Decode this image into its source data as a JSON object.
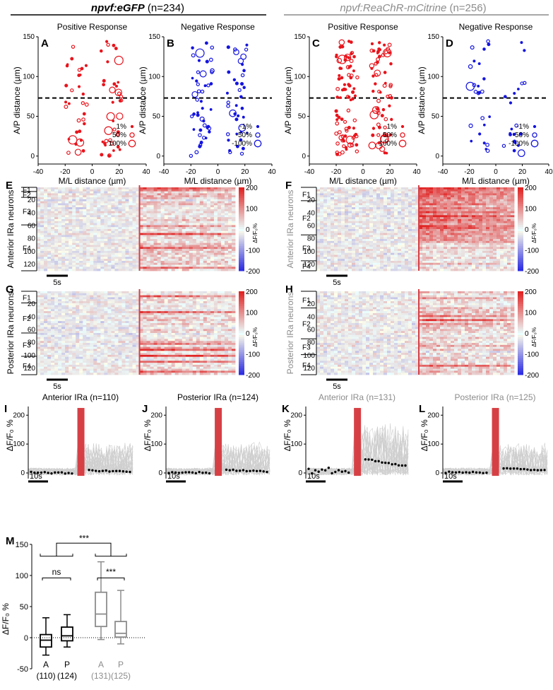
{
  "headers": {
    "left": {
      "title": "npvf:eGFP",
      "count": "(n=234)"
    },
    "right": {
      "title": "npvf:ReaChR-mCitrine",
      "count": "(n=256)"
    }
  },
  "colors": {
    "red": "#e8141c",
    "blue": "#1414e0",
    "gray": "#8c8c8c",
    "black": "#000000",
    "stim": "#d64045",
    "traceGray": "#cfcfcf"
  },
  "scatter_panels": [
    {
      "letter": "A",
      "title": "Positive Response",
      "color": "red",
      "legend": [
        "1%",
        "50%",
        "100%"
      ]
    },
    {
      "letter": "B",
      "title": "Negative Response",
      "color": "blue",
      "legend": [
        "-1%",
        "-50%",
        "-100%"
      ]
    },
    {
      "letter": "C",
      "title": "Positive Response",
      "color": "red",
      "legend": [
        "1%",
        "50%",
        "100%"
      ]
    },
    {
      "letter": "D",
      "title": "Negative Response",
      "color": "blue",
      "legend": [
        "-1%",
        "-50%",
        "-100%"
      ]
    }
  ],
  "scatter_axes": {
    "xlabel": "M/L distance (µm)",
    "ylabel": "A/P distance (µm)",
    "xticks": [
      "-40",
      "-20",
      "0",
      "20",
      "40"
    ],
    "yticks": [
      "0",
      "50",
      "100",
      "150"
    ]
  },
  "heatmap_panels": [
    {
      "letter": "E",
      "ylabel": "Anterior IRa neurons",
      "groups": [
        "F1",
        "F2",
        "F3",
        "F4"
      ],
      "gray": false
    },
    {
      "letter": "F",
      "ylabel": "Anterior IRa neurons",
      "groups": [
        "F1",
        "F2",
        "F3",
        "F4"
      ],
      "gray": true
    },
    {
      "letter": "G",
      "ylabel": "Posterior IRa neurons",
      "groups": [
        "F1",
        "F2",
        "F3",
        "F4"
      ],
      "gray": false
    },
    {
      "letter": "H",
      "ylabel": "Posterior IRa neurons",
      "groups": [
        "F1",
        "F2",
        "F3",
        "F4"
      ],
      "gray": true
    }
  ],
  "heatmap_axes": {
    "yticks": [
      "20",
      "40",
      "60",
      "80",
      "100",
      "120"
    ],
    "scalebar": "5s",
    "cbar_ticks": [
      "200",
      "100",
      "0",
      "-100",
      "-200"
    ],
    "cbar_label": "ΔF/F₀%"
  },
  "trace_panels": [
    {
      "letter": "I",
      "title": "Anterior IRa (n=110)",
      "gray": false
    },
    {
      "letter": "J",
      "title": "Posterior IRa (n=124)",
      "gray": false
    },
    {
      "letter": "K",
      "title": "Anterior IRa (n=131)",
      "gray": true
    },
    {
      "letter": "L",
      "title": "Posterior IRa (n=125)",
      "gray": true
    }
  ],
  "trace_axes": {
    "ylabel": "ΔF/F₀ %",
    "yticks": [
      "0",
      "100",
      "200"
    ],
    "scalebar": "10s"
  },
  "chart_data": {
    "type": "box",
    "letter": "M",
    "ylabel": "ΔF/F₀ %",
    "ylim": [
      -50,
      150
    ],
    "yticks": [
      "-50",
      "0",
      "50",
      "100",
      "150"
    ],
    "categories": [
      "A",
      "P",
      "A",
      "P"
    ],
    "counts": [
      "(110)",
      "(124)",
      "(131)",
      "(125)"
    ],
    "box_colors": [
      "black",
      "black",
      "gray",
      "gray"
    ],
    "boxes": [
      {
        "whisker_low": -28,
        "q1": -15,
        "median": -4,
        "q3": 5,
        "whisker_high": 32
      },
      {
        "whisker_low": -15,
        "q1": -5,
        "median": 3,
        "q3": 17,
        "whisker_high": 37
      },
      {
        "whisker_low": -3,
        "q1": 18,
        "median": 38,
        "q3": 73,
        "whisker_high": 122
      },
      {
        "whisker_low": -10,
        "q1": 1,
        "median": 7,
        "q3": 26,
        "whisker_high": 76
      }
    ],
    "significance": [
      "***",
      "ns",
      "***"
    ]
  }
}
